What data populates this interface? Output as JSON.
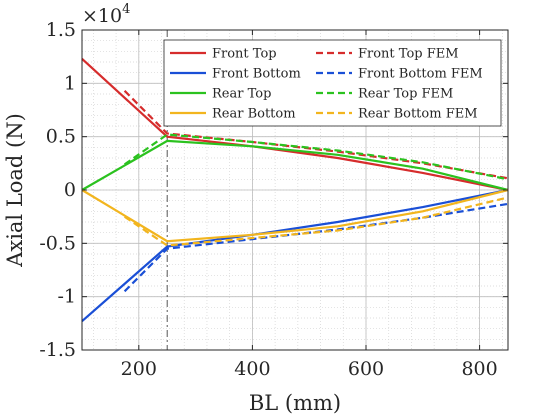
{
  "chart_data": {
    "type": "line",
    "title": "",
    "xlabel": "BL (mm)",
    "ylabel": "Axial Load (N)",
    "xlim": [
      100,
      850
    ],
    "ylim": [
      -1.5,
      1.5
    ],
    "y_exponent_label": "×10",
    "y_exponent": "4",
    "xticks": [
      200,
      400,
      600,
      800
    ],
    "yticks": [
      -1.5,
      -1,
      -0.5,
      0,
      0.5,
      1,
      1.5
    ],
    "xtick_labels": [
      "200",
      "400",
      "600",
      "800"
    ],
    "ytick_labels": [
      "-1.5",
      "-1",
      "-0.5",
      "0",
      "0.5",
      "1",
      "1.5"
    ],
    "grid": "on",
    "minor_grid": "on",
    "vertical_reference_line_x": 250,
    "legend_placement": "top-right",
    "series": [
      {
        "name": "Front Top",
        "color": "#d62c2c",
        "dash": "solid",
        "points": [
          [
            100,
            1.23
          ],
          [
            250,
            0.5
          ],
          [
            400,
            0.41
          ],
          [
            550,
            0.3
          ],
          [
            700,
            0.16
          ],
          [
            850,
            0.0
          ]
        ]
      },
      {
        "name": "Front Bottom",
        "color": "#1a4fd6",
        "dash": "solid",
        "points": [
          [
            100,
            -1.23
          ],
          [
            250,
            -0.53
          ],
          [
            400,
            -0.42
          ],
          [
            550,
            -0.3
          ],
          [
            700,
            -0.16
          ],
          [
            850,
            0.0
          ]
        ]
      },
      {
        "name": "Rear Top",
        "color": "#2bc21f",
        "dash": "solid",
        "points": [
          [
            100,
            0.0
          ],
          [
            250,
            0.46
          ],
          [
            400,
            0.41
          ],
          [
            550,
            0.33
          ],
          [
            700,
            0.2
          ],
          [
            850,
            0.0
          ]
        ]
      },
      {
        "name": "Rear Bottom",
        "color": "#f2b51e",
        "dash": "solid",
        "points": [
          [
            100,
            0.0
          ],
          [
            250,
            -0.48
          ],
          [
            400,
            -0.42
          ],
          [
            550,
            -0.34
          ],
          [
            700,
            -0.2
          ],
          [
            850,
            0.0
          ]
        ]
      },
      {
        "name": "Front Top FEM",
        "color": "#d62c2c",
        "dash": "dashed",
        "points": [
          [
            175,
            0.93
          ],
          [
            250,
            0.53
          ],
          [
            400,
            0.45
          ],
          [
            550,
            0.36
          ],
          [
            700,
            0.25
          ],
          [
            850,
            0.11
          ]
        ]
      },
      {
        "name": "Front Bottom FEM",
        "color": "#1a4fd6",
        "dash": "dashed",
        "points": [
          [
            175,
            -0.95
          ],
          [
            250,
            -0.55
          ],
          [
            400,
            -0.46
          ],
          [
            550,
            -0.37
          ],
          [
            700,
            -0.26
          ],
          [
            850,
            -0.13
          ]
        ]
      },
      {
        "name": "Rear Top FEM",
        "color": "#2bc21f",
        "dash": "dashed",
        "points": [
          [
            175,
            0.24
          ],
          [
            250,
            0.52
          ],
          [
            400,
            0.45
          ],
          [
            550,
            0.37
          ],
          [
            700,
            0.26
          ],
          [
            850,
            0.1
          ]
        ]
      },
      {
        "name": "Rear Bottom FEM",
        "color": "#f2b51e",
        "dash": "dashed",
        "points": [
          [
            175,
            -0.25
          ],
          [
            250,
            -0.52
          ],
          [
            400,
            -0.45
          ],
          [
            550,
            -0.38
          ],
          [
            700,
            -0.26
          ],
          [
            850,
            -0.07
          ]
        ]
      }
    ]
  }
}
